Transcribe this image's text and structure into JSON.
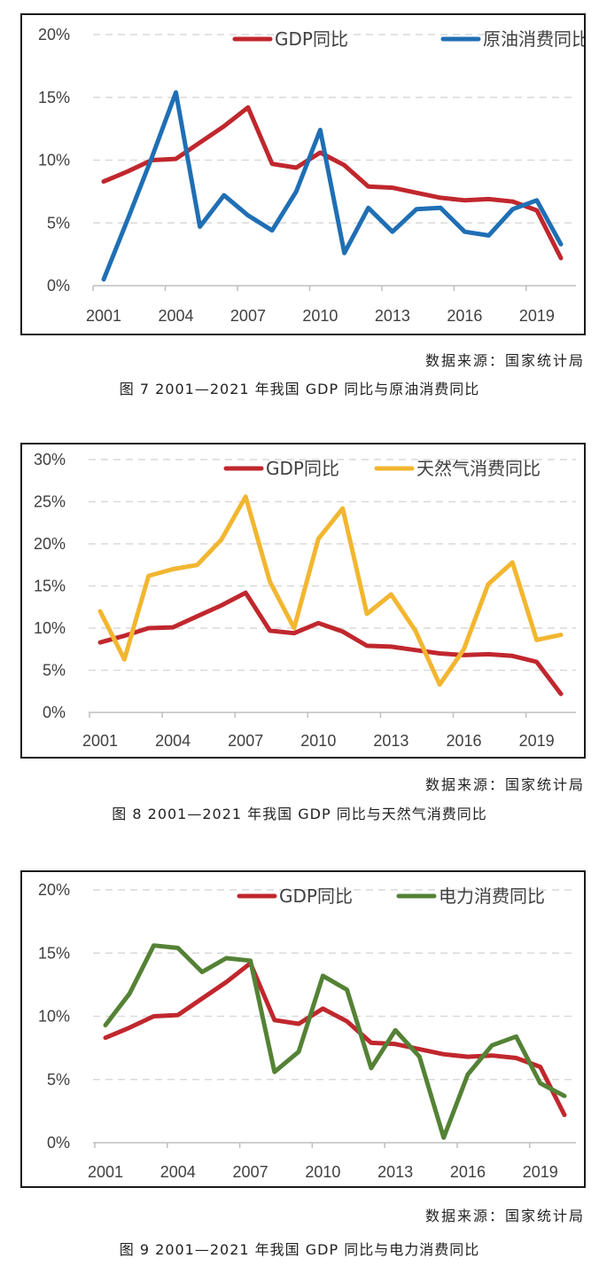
{
  "chart_data": [
    {
      "type": "line",
      "x": [
        2001,
        2002,
        2003,
        2004,
        2005,
        2006,
        2007,
        2008,
        2009,
        2010,
        2011,
        2012,
        2013,
        2014,
        2015,
        2016,
        2017,
        2018,
        2019,
        2020
      ],
      "xticks": [
        "2001",
        "2004",
        "2007",
        "2010",
        "2013",
        "2016",
        "2019"
      ],
      "ylim": [
        0,
        20
      ],
      "yticks": [
        "0%",
        "5%",
        "10%",
        "15%",
        "20%"
      ],
      "grid": "horizontal-dashed",
      "legend": "top-right",
      "series": [
        {
          "name": "GDP同比",
          "color": "#C0272D",
          "values": [
            8.3,
            9.1,
            10.0,
            10.1,
            11.4,
            12.7,
            14.2,
            9.7,
            9.4,
            10.6,
            9.6,
            7.9,
            7.8,
            7.4,
            7.0,
            6.8,
            6.9,
            6.7,
            6.0,
            2.2
          ]
        },
        {
          "name": "原油消费同比",
          "color": "#1F6FB4",
          "values": [
            0.5,
            5.3,
            10.2,
            15.4,
            4.7,
            7.2,
            5.6,
            4.4,
            7.5,
            12.4,
            2.6,
            6.2,
            4.3,
            6.1,
            6.2,
            4.3,
            4.0,
            6.1,
            6.8,
            3.3
          ]
        }
      ],
      "source": "数据来源：国家统计局",
      "caption": "图 7  2001—2021 年我国 GDP 同比与原油消费同比"
    },
    {
      "type": "line",
      "x": [
        2001,
        2002,
        2003,
        2004,
        2005,
        2006,
        2007,
        2008,
        2009,
        2010,
        2011,
        2012,
        2013,
        2014,
        2015,
        2016,
        2017,
        2018,
        2019,
        2020
      ],
      "xticks": [
        "2001",
        "2004",
        "2007",
        "2010",
        "2013",
        "2016",
        "2019"
      ],
      "ylim": [
        0,
        30
      ],
      "yticks": [
        "0%",
        "5%",
        "10%",
        "15%",
        "20%",
        "25%",
        "30%"
      ],
      "grid": "horizontal-dashed",
      "legend": "top-right",
      "series": [
        {
          "name": "GDP同比",
          "color": "#C0272D",
          "values": [
            8.3,
            9.1,
            10.0,
            10.1,
            11.4,
            12.7,
            14.2,
            9.7,
            9.4,
            10.6,
            9.6,
            7.9,
            7.8,
            7.4,
            7.0,
            6.8,
            6.9,
            6.7,
            6.0,
            2.2
          ]
        },
        {
          "name": "天然气消费同比",
          "color": "#F2B630",
          "values": [
            12.0,
            6.3,
            16.2,
            17.0,
            17.5,
            20.5,
            25.6,
            15.5,
            10.0,
            20.6,
            24.2,
            11.7,
            14.0,
            9.7,
            3.3,
            7.5,
            15.2,
            17.8,
            8.6,
            9.2
          ]
        }
      ],
      "source": "数据来源：国家统计局",
      "caption": "图 8  2001—2021 年我国 GDP 同比与天然气消费同比"
    },
    {
      "type": "line",
      "x": [
        2001,
        2002,
        2003,
        2004,
        2005,
        2006,
        2007,
        2008,
        2009,
        2010,
        2011,
        2012,
        2013,
        2014,
        2015,
        2016,
        2017,
        2018,
        2019,
        2020
      ],
      "xticks": [
        "2001",
        "2004",
        "2007",
        "2010",
        "2013",
        "2016",
        "2019"
      ],
      "ylim": [
        0,
        20
      ],
      "yticks": [
        "0%",
        "5%",
        "10%",
        "15%",
        "20%"
      ],
      "grid": "horizontal-dashed",
      "legend": "top-right",
      "series": [
        {
          "name": "GDP同比",
          "color": "#C0272D",
          "values": [
            8.3,
            9.1,
            10.0,
            10.1,
            11.4,
            12.7,
            14.2,
            9.7,
            9.4,
            10.6,
            9.6,
            7.9,
            7.8,
            7.4,
            7.0,
            6.8,
            6.9,
            6.7,
            6.0,
            2.2
          ]
        },
        {
          "name": "电力消费同比",
          "color": "#548235",
          "values": [
            9.3,
            11.8,
            15.6,
            15.4,
            13.5,
            14.6,
            14.4,
            5.6,
            7.2,
            13.2,
            12.1,
            5.9,
            8.9,
            6.8,
            0.4,
            5.4,
            7.7,
            8.4,
            4.7,
            3.7
          ]
        }
      ],
      "source": "数据来源：国家统计局",
      "caption": "图 9  2001—2021 年我国 GDP 同比与电力消费同比"
    }
  ]
}
